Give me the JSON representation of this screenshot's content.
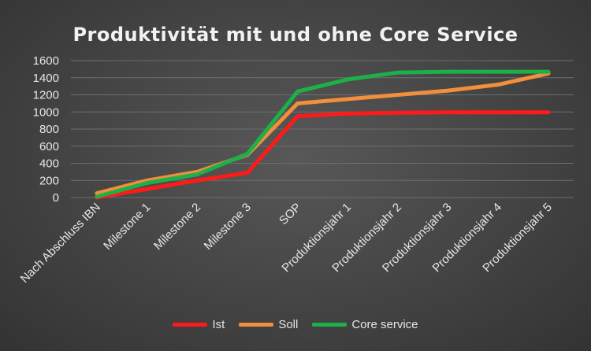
{
  "chart_data": {
    "type": "line",
    "title": "Produktivität mit und ohne Core Service",
    "categories": [
      "Nach Abschluss IBN",
      "Milestone 1",
      "Milestone 2",
      "Milestone 3",
      "SOP",
      "Produktionsjahr 1",
      "Produktionsjahr 2",
      "Produktionsjahr 3",
      "Produktionsjahr 4",
      "Produktionsjahr 5"
    ],
    "ylim": [
      0,
      1600
    ],
    "yticks": [
      0,
      200,
      400,
      600,
      800,
      1000,
      1200,
      1400,
      1600
    ],
    "grid": true,
    "legend_position": "bottom",
    "series": [
      {
        "name": "Ist",
        "color": "#ff1a1a",
        "values": [
          0,
          100,
          200,
          290,
          950,
          980,
          990,
          995,
          995,
          995
        ]
      },
      {
        "name": "Soll",
        "color": "#f28e3c",
        "values": [
          50,
          200,
          300,
          500,
          1100,
          1150,
          1200,
          1250,
          1320,
          1450
        ]
      },
      {
        "name": "Core service",
        "color": "#1db049",
        "values": [
          10,
          170,
          270,
          510,
          1240,
          1380,
          1460,
          1470,
          1470,
          1470
        ]
      }
    ]
  }
}
